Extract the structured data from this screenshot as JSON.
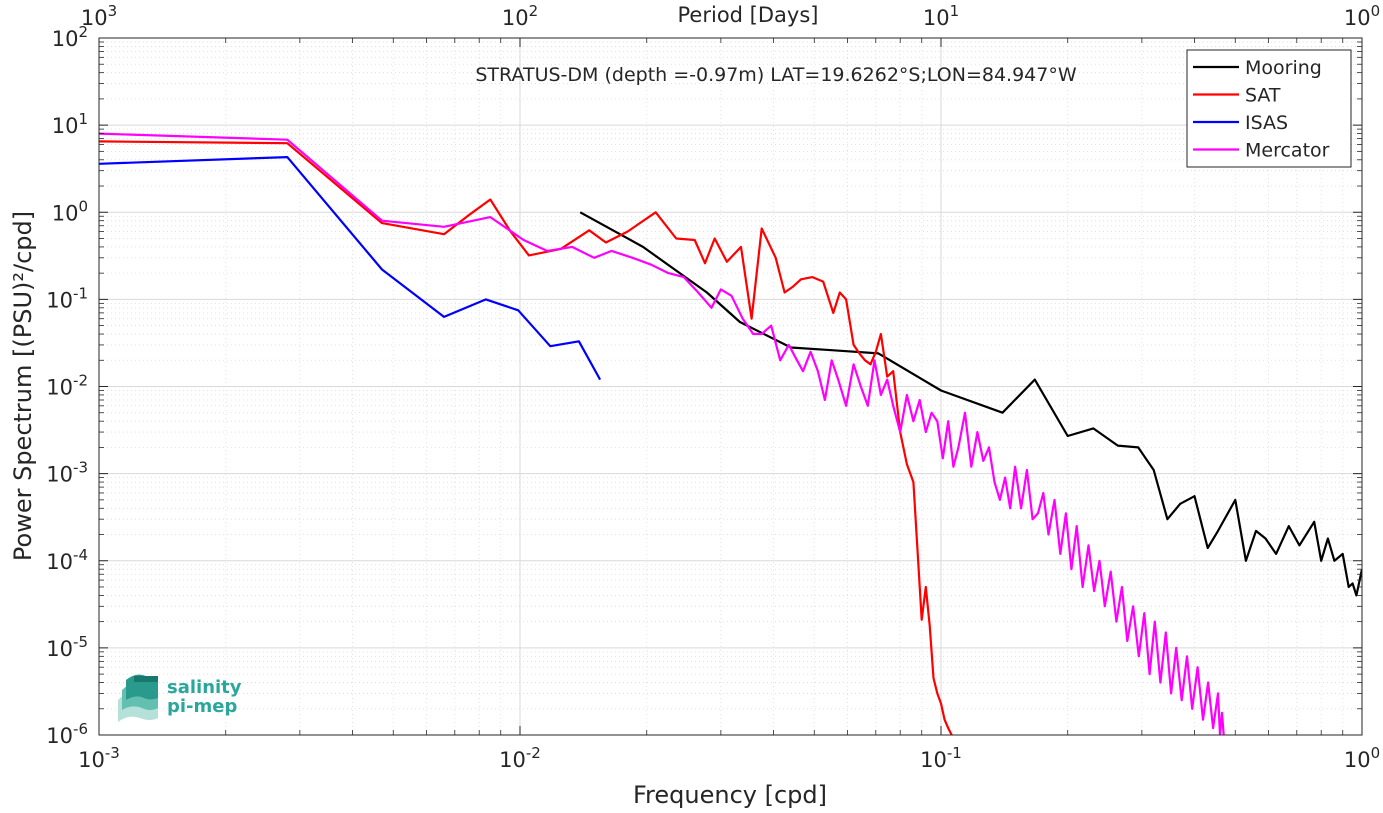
{
  "chart_data": {
    "type": "line",
    "title": "STRATUS-DM (depth =-0.97m) LAT=19.6262°S;LON=84.947°W",
    "xlabel": "Frequency [cpd]",
    "ylabel": "Power Spectrum [(PSU)²/cpd]",
    "top_axis_label": "Period [Days]",
    "x_scale": "log",
    "y_scale": "log",
    "xlim": [
      0.001,
      1
    ],
    "ylim": [
      1e-06,
      100
    ],
    "grid": true,
    "minor_grid": true,
    "legend_position": "top-right",
    "x_ticks": [
      0.001,
      0.01,
      0.1,
      1
    ],
    "y_ticks": [
      1e-06,
      1e-05,
      0.0001,
      0.001,
      0.01,
      0.1,
      1,
      10,
      100
    ],
    "top_ticks": [
      1000,
      100,
      10,
      1
    ],
    "series": [
      {
        "name": "Mooring",
        "color": "#000000",
        "x": [
          0.0139,
          0.0196,
          0.0278,
          0.0333,
          0.044,
          0.0556,
          0.071,
          0.1,
          0.14,
          0.167,
          0.2,
          0.23,
          0.263,
          0.294,
          0.32,
          0.345,
          0.37,
          0.4,
          0.43,
          0.455,
          0.5,
          0.53,
          0.56,
          0.59,
          0.625,
          0.67,
          0.71,
          0.77,
          0.8,
          0.83,
          0.86,
          0.9,
          0.93,
          0.95,
          0.97,
          1.0
        ],
        "y": [
          1.0,
          0.4,
          0.12,
          0.055,
          0.028,
          0.026,
          0.024,
          0.009,
          0.005,
          0.012,
          0.0027,
          0.0033,
          0.0021,
          0.002,
          0.0011,
          0.0003,
          0.00045,
          0.00055,
          0.00014,
          0.00022,
          0.0005,
          0.0001,
          0.00022,
          0.00018,
          0.00012,
          0.00025,
          0.00015,
          0.00028,
          0.0001,
          0.00018,
          0.0001,
          0.00012,
          5e-05,
          5.5e-05,
          4e-05,
          8e-05
        ]
      },
      {
        "name": "SAT",
        "color": "#ff0000",
        "x": [
          0.001,
          0.0028,
          0.0047,
          0.0066,
          0.0075,
          0.0085,
          0.0095,
          0.0105,
          0.0125,
          0.0146,
          0.016,
          0.018,
          0.021,
          0.0235,
          0.026,
          0.0275,
          0.029,
          0.031,
          0.0335,
          0.0355,
          0.0375,
          0.0405,
          0.0425,
          0.0445,
          0.0465,
          0.0495,
          0.0525,
          0.0555,
          0.0575,
          0.0595,
          0.062,
          0.064,
          0.066,
          0.068,
          0.07,
          0.072,
          0.0745,
          0.077,
          0.08,
          0.083,
          0.086,
          0.09,
          0.092,
          0.094,
          0.096,
          0.098,
          0.1,
          0.102,
          0.104,
          0.106,
          0.109
        ],
        "y": [
          6.5,
          6.2,
          0.75,
          0.56,
          0.9,
          1.4,
          0.6,
          0.32,
          0.38,
          0.62,
          0.45,
          0.6,
          1.0,
          0.5,
          0.48,
          0.26,
          0.5,
          0.27,
          0.4,
          0.06,
          0.65,
          0.3,
          0.12,
          0.14,
          0.17,
          0.18,
          0.16,
          0.07,
          0.12,
          0.1,
          0.03,
          0.024,
          0.02,
          0.018,
          0.025,
          0.04,
          0.013,
          0.015,
          0.003,
          0.00128,
          0.0008,
          2.1e-05,
          5e-05,
          1.8e-05,
          4.5e-06,
          3e-06,
          2.3e-06,
          1.5e-06,
          1.2e-06,
          1e-06,
          8.5e-07
        ]
      },
      {
        "name": "ISAS",
        "color": "#0000ff",
        "x": [
          0.001,
          0.0028,
          0.0047,
          0.0066,
          0.0083,
          0.0099,
          0.0118,
          0.0138,
          0.0155
        ],
        "y": [
          3.6,
          4.3,
          0.22,
          0.063,
          0.1,
          0.075,
          0.029,
          0.033,
          0.012
        ]
      },
      {
        "name": "Mercator",
        "color": "#ff00ff",
        "x": [
          0.001,
          0.0028,
          0.0047,
          0.0066,
          0.0085,
          0.0102,
          0.0116,
          0.0133,
          0.015,
          0.0165,
          0.0185,
          0.0205,
          0.0225,
          0.0245,
          0.0265,
          0.0285,
          0.03,
          0.0318,
          0.0338,
          0.0358,
          0.0375,
          0.0395,
          0.0415,
          0.0435,
          0.0455,
          0.047,
          0.049,
          0.051,
          0.053,
          0.055,
          0.057,
          0.0595,
          0.062,
          0.0645,
          0.067,
          0.0695,
          0.072,
          0.0745,
          0.077,
          0.08,
          0.083,
          0.086,
          0.089,
          0.092,
          0.095,
          0.098,
          0.101,
          0.104,
          0.107,
          0.11,
          0.114,
          0.118,
          0.122,
          0.126,
          0.13,
          0.134,
          0.138,
          0.142,
          0.146,
          0.15,
          0.155,
          0.16,
          0.165,
          0.17,
          0.175,
          0.18,
          0.186,
          0.192,
          0.198,
          0.204,
          0.21,
          0.217,
          0.224,
          0.231,
          0.238,
          0.245,
          0.253,
          0.261,
          0.269,
          0.277,
          0.286,
          0.295,
          0.304,
          0.313,
          0.322,
          0.332,
          0.342,
          0.352,
          0.362,
          0.373,
          0.384,
          0.395,
          0.407,
          0.419,
          0.431,
          0.443,
          0.455,
          0.46,
          0.465,
          0.47
        ],
        "y": [
          8.0,
          6.8,
          0.8,
          0.68,
          0.88,
          0.48,
          0.36,
          0.4,
          0.3,
          0.36,
          0.3,
          0.25,
          0.2,
          0.18,
          0.12,
          0.08,
          0.13,
          0.11,
          0.06,
          0.04,
          0.04,
          0.05,
          0.02,
          0.03,
          0.02,
          0.015,
          0.025,
          0.015,
          0.007,
          0.02,
          0.012,
          0.006,
          0.018,
          0.01,
          0.006,
          0.02,
          0.008,
          0.012,
          0.006,
          0.003,
          0.008,
          0.004,
          0.007,
          0.003,
          0.005,
          0.004,
          0.0015,
          0.004,
          0.0012,
          0.002,
          0.005,
          0.0012,
          0.003,
          0.0014,
          0.002,
          0.0008,
          0.0005,
          0.0009,
          0.0004,
          0.0012,
          0.0004,
          0.0011,
          0.0003,
          0.00035,
          0.0006,
          0.0002,
          0.0005,
          0.00012,
          0.00035,
          8e-05,
          0.00025,
          5e-05,
          0.00015,
          4.5e-05,
          0.0001,
          3e-05,
          7.5e-05,
          2e-05,
          5e-05,
          1.2e-05,
          3e-05,
          8e-06,
          2.5e-05,
          5e-06,
          2e-05,
          4e-06,
          1.5e-05,
          3e-06,
          1e-05,
          2.5e-06,
          8e-06,
          2e-06,
          6e-06,
          1.5e-06,
          4e-06,
          1.2e-06,
          3e-06,
          1e-06,
          1.8e-06,
          9e-07
        ]
      }
    ]
  },
  "logo": {
    "line1": "salinity",
    "line2": "pi-mep",
    "color": "#2aa79b"
  }
}
